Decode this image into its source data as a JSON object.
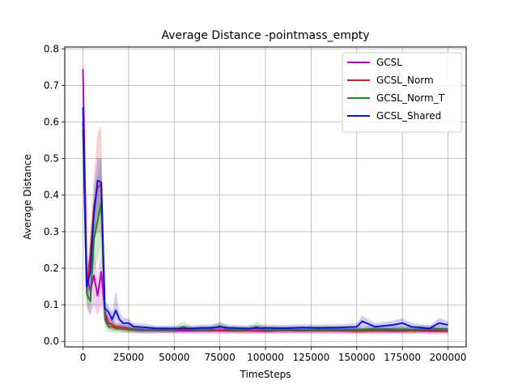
{
  "chart_data": {
    "type": "line",
    "title": "Average Distance -pointmass_empty",
    "xlabel": "TimeSteps",
    "ylabel": "Average Distance",
    "xlim": [
      -10000,
      210000
    ],
    "ylim": [
      -0.015,
      0.805
    ],
    "xticks": [
      0,
      25000,
      50000,
      75000,
      100000,
      125000,
      150000,
      175000,
      200000
    ],
    "yticks": [
      0.0,
      0.1,
      0.2,
      0.3,
      0.4,
      0.5,
      0.6,
      0.7,
      0.8
    ],
    "grid": true,
    "legend_position": "top-right",
    "series": [
      {
        "name": "GCSL",
        "color": "#bf00bf",
        "x": [
          0,
          2000,
          4000,
          6000,
          8000,
          10000,
          12000,
          14000,
          16000,
          18000,
          20000,
          25000,
          30000,
          35000,
          40000,
          45000,
          50000,
          60000,
          70000,
          80000,
          90000,
          100000,
          110000,
          120000,
          130000,
          140000,
          150000,
          160000,
          170000,
          180000,
          190000,
          200000
        ],
        "y": [
          0.745,
          0.18,
          0.14,
          0.18,
          0.125,
          0.19,
          0.08,
          0.05,
          0.045,
          0.04,
          0.035,
          0.032,
          0.03,
          0.03,
          0.03,
          0.03,
          0.029,
          0.029,
          0.03,
          0.029,
          0.029,
          0.028,
          0.03,
          0.029,
          0.03,
          0.029,
          0.028,
          0.029,
          0.028,
          0.029,
          0.028,
          0.028
        ],
        "lower": [
          0.72,
          0.1,
          0.07,
          0.1,
          0.07,
          0.1,
          0.05,
          0.035,
          0.03,
          0.03,
          0.026,
          0.024,
          0.022,
          0.022,
          0.022,
          0.022,
          0.021,
          0.021,
          0.022,
          0.021,
          0.021,
          0.02,
          0.022,
          0.021,
          0.022,
          0.021,
          0.02,
          0.021,
          0.02,
          0.021,
          0.02,
          0.02
        ],
        "upper": [
          0.77,
          0.24,
          0.2,
          0.25,
          0.18,
          0.26,
          0.11,
          0.07,
          0.06,
          0.055,
          0.045,
          0.04,
          0.038,
          0.038,
          0.038,
          0.038,
          0.037,
          0.037,
          0.038,
          0.037,
          0.037,
          0.036,
          0.038,
          0.037,
          0.038,
          0.037,
          0.036,
          0.037,
          0.036,
          0.037,
          0.036,
          0.036
        ]
      },
      {
        "name": "GCSL_Norm",
        "color": "#d62020",
        "x": [
          0,
          2000,
          4000,
          6000,
          8000,
          10000,
          12000,
          14000,
          16000,
          18000,
          20000,
          25000,
          30000,
          35000,
          40000,
          45000,
          50000,
          60000,
          70000,
          80000,
          90000,
          100000,
          110000,
          120000,
          130000,
          140000,
          150000,
          160000,
          170000,
          180000,
          190000,
          200000
        ],
        "y": [
          0.6,
          0.14,
          0.24,
          0.37,
          0.42,
          0.43,
          0.07,
          0.05,
          0.045,
          0.04,
          0.04,
          0.035,
          0.033,
          0.032,
          0.032,
          0.031,
          0.031,
          0.032,
          0.031,
          0.031,
          0.03,
          0.031,
          0.031,
          0.031,
          0.03,
          0.031,
          0.03,
          0.03,
          0.031,
          0.03,
          0.031,
          0.03
        ],
        "lower": [
          0.56,
          0.1,
          0.18,
          0.28,
          0.3,
          0.29,
          0.05,
          0.035,
          0.032,
          0.03,
          0.03,
          0.026,
          0.025,
          0.024,
          0.024,
          0.023,
          0.023,
          0.024,
          0.023,
          0.023,
          0.022,
          0.023,
          0.023,
          0.023,
          0.022,
          0.023,
          0.022,
          0.022,
          0.023,
          0.022,
          0.023,
          0.022
        ],
        "upper": [
          0.64,
          0.18,
          0.3,
          0.46,
          0.57,
          0.59,
          0.09,
          0.065,
          0.058,
          0.05,
          0.05,
          0.044,
          0.041,
          0.04,
          0.04,
          0.039,
          0.039,
          0.04,
          0.039,
          0.039,
          0.038,
          0.039,
          0.039,
          0.039,
          0.038,
          0.039,
          0.038,
          0.038,
          0.039,
          0.038,
          0.039,
          0.038
        ]
      },
      {
        "name": "GCSL_Norm_T",
        "color": "#1a8a1a",
        "x": [
          0,
          2000,
          4000,
          6000,
          8000,
          10000,
          12000,
          14000,
          16000,
          18000,
          20000,
          25000,
          30000,
          35000,
          40000,
          45000,
          50000,
          55000,
          60000,
          70000,
          75000,
          80000,
          90000,
          95000,
          100000,
          110000,
          120000,
          130000,
          140000,
          150000,
          160000,
          170000,
          180000,
          190000,
          200000
        ],
        "y": [
          0.58,
          0.13,
          0.11,
          0.28,
          0.33,
          0.38,
          0.06,
          0.04,
          0.04,
          0.035,
          0.035,
          0.033,
          0.032,
          0.031,
          0.031,
          0.031,
          0.031,
          0.04,
          0.032,
          0.033,
          0.042,
          0.032,
          0.033,
          0.04,
          0.032,
          0.033,
          0.032,
          0.033,
          0.033,
          0.032,
          0.034,
          0.033,
          0.032,
          0.035,
          0.033
        ],
        "lower": [
          0.55,
          0.09,
          0.07,
          0.2,
          0.22,
          0.26,
          0.04,
          0.025,
          0.025,
          0.022,
          0.024,
          0.023,
          0.022,
          0.021,
          0.022,
          0.022,
          0.022,
          0.026,
          0.023,
          0.024,
          0.028,
          0.023,
          0.024,
          0.027,
          0.023,
          0.024,
          0.023,
          0.024,
          0.024,
          0.023,
          0.025,
          0.024,
          0.023,
          0.025,
          0.024
        ],
        "upper": [
          0.61,
          0.17,
          0.15,
          0.36,
          0.44,
          0.5,
          0.08,
          0.055,
          0.055,
          0.048,
          0.046,
          0.043,
          0.042,
          0.041,
          0.04,
          0.04,
          0.04,
          0.055,
          0.041,
          0.042,
          0.056,
          0.041,
          0.042,
          0.053,
          0.041,
          0.042,
          0.041,
          0.042,
          0.042,
          0.041,
          0.043,
          0.042,
          0.041,
          0.045,
          0.042
        ]
      },
      {
        "name": "GCSL_Shared",
        "color": "#1010e0",
        "x": [
          0,
          2000,
          4000,
          6000,
          8000,
          10000,
          12000,
          14000,
          16000,
          18000,
          20000,
          22000,
          25000,
          28000,
          30000,
          35000,
          40000,
          45000,
          50000,
          55000,
          60000,
          65000,
          70000,
          75000,
          80000,
          90000,
          100000,
          110000,
          120000,
          130000,
          140000,
          150000,
          153000,
          160000,
          170000,
          175000,
          180000,
          185000,
          190000,
          195000,
          200000
        ],
        "y": [
          0.64,
          0.15,
          0.19,
          0.35,
          0.44,
          0.435,
          0.09,
          0.08,
          0.06,
          0.085,
          0.06,
          0.05,
          0.05,
          0.04,
          0.04,
          0.038,
          0.035,
          0.035,
          0.035,
          0.035,
          0.035,
          0.037,
          0.037,
          0.04,
          0.037,
          0.035,
          0.037,
          0.036,
          0.038,
          0.037,
          0.038,
          0.04,
          0.055,
          0.04,
          0.045,
          0.05,
          0.04,
          0.038,
          0.035,
          0.05,
          0.045
        ],
        "lower": [
          0.62,
          0.11,
          0.14,
          0.28,
          0.35,
          0.35,
          0.07,
          0.06,
          0.045,
          0.06,
          0.045,
          0.038,
          0.038,
          0.03,
          0.03,
          0.028,
          0.027,
          0.027,
          0.027,
          0.027,
          0.027,
          0.028,
          0.028,
          0.03,
          0.028,
          0.027,
          0.028,
          0.027,
          0.029,
          0.028,
          0.029,
          0.03,
          0.04,
          0.03,
          0.033,
          0.036,
          0.03,
          0.029,
          0.027,
          0.036,
          0.034
        ],
        "upper": [
          0.66,
          0.19,
          0.24,
          0.42,
          0.5,
          0.5,
          0.11,
          0.1,
          0.08,
          0.14,
          0.08,
          0.065,
          0.062,
          0.05,
          0.05,
          0.048,
          0.043,
          0.043,
          0.043,
          0.043,
          0.043,
          0.046,
          0.046,
          0.05,
          0.046,
          0.043,
          0.046,
          0.045,
          0.047,
          0.046,
          0.047,
          0.05,
          0.07,
          0.05,
          0.057,
          0.064,
          0.05,
          0.047,
          0.043,
          0.064,
          0.056
        ]
      }
    ]
  }
}
